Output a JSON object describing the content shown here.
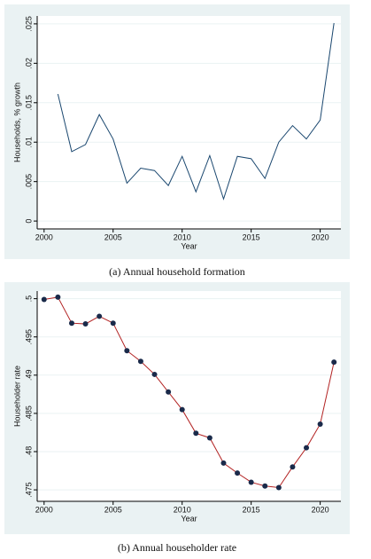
{
  "chart_data": [
    {
      "type": "line",
      "xlabel": "Year",
      "ylabel": "Households, % growth",
      "caption": "(a) Annual household formation",
      "x": [
        2001,
        2002,
        2003,
        2004,
        2005,
        2006,
        2007,
        2008,
        2009,
        2010,
        2011,
        2012,
        2013,
        2014,
        2015,
        2016,
        2017,
        2018,
        2019,
        2020,
        2021
      ],
      "series": [
        {
          "color": "#1a476f",
          "values": [
            0.0161,
            0.0088,
            0.0097,
            0.0135,
            0.0104,
            0.0048,
            0.0067,
            0.0064,
            0.0045,
            0.0082,
            0.0037,
            0.0083,
            0.0028,
            0.0082,
            0.0079,
            0.0054,
            0.01,
            0.0121,
            0.0104,
            0.0128,
            0.0251
          ]
        }
      ],
      "xlim": [
        1999.5,
        2021.5
      ],
      "xticks": [
        2000,
        2005,
        2010,
        2015,
        2020
      ],
      "ylim": [
        -0.001,
        0.026
      ],
      "yticks": [
        0,
        {
          "value": 0.005,
          "label": ".005"
        },
        {
          "value": 0.01,
          "label": ".01"
        },
        {
          "value": 0.015,
          "label": ".015"
        },
        {
          "value": 0.02,
          "label": ".02"
        },
        {
          "value": 0.025,
          "label": ".025"
        }
      ],
      "grid": true,
      "markers": false
    },
    {
      "type": "line",
      "xlabel": "Year",
      "ylabel": "Householder rate",
      "caption": "(b) Annual householder rate",
      "x": [
        2000,
        2001,
        2002,
        2003,
        2004,
        2005,
        2006,
        2007,
        2008,
        2009,
        2010,
        2011,
        2012,
        2013,
        2014,
        2015,
        2016,
        2017,
        2018,
        2019,
        2020,
        2021
      ],
      "series": [
        {
          "color": "#b22222",
          "marker_color": "#1a2a4a",
          "values": [
            0.4999,
            0.5002,
            0.4968,
            0.4967,
            0.4977,
            0.4968,
            0.4932,
            0.4918,
            0.4901,
            0.4878,
            0.4855,
            0.4824,
            0.4818,
            0.4785,
            0.4772,
            0.476,
            0.4755,
            0.4753,
            0.478,
            0.4805,
            0.4836,
            0.4917
          ]
        }
      ],
      "xlim": [
        1999.5,
        2021.5
      ],
      "xticks": [
        2000,
        2005,
        2010,
        2015,
        2020
      ],
      "ylim": [
        0.4735,
        0.501
      ],
      "yticks": [
        {
          "value": 0.475,
          "label": ".475"
        },
        {
          "value": 0.48,
          "label": ".48"
        },
        {
          "value": 0.485,
          "label": ".485"
        },
        {
          "value": 0.49,
          "label": ".49"
        },
        {
          "value": 0.495,
          "label": ".495"
        },
        {
          "value": 0.5,
          "label": ".5"
        }
      ],
      "grid": true,
      "markers": true
    }
  ]
}
